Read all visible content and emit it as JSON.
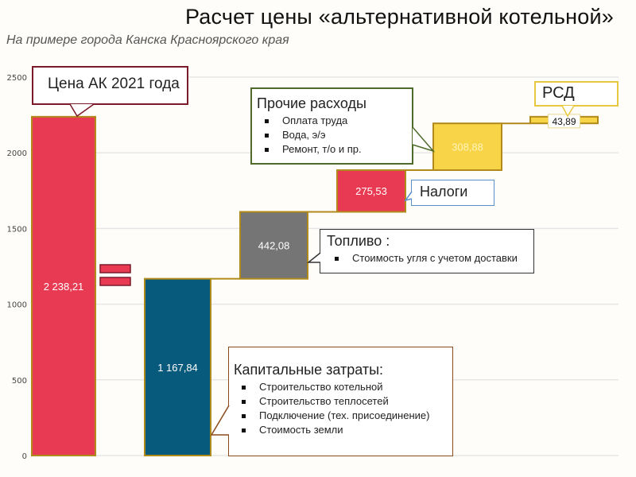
{
  "title": "Расчет цены «альтернативной котельной»",
  "subtitle": "На примере города Канска Красноярского края",
  "chart_data": {
    "type": "waterfall",
    "ylim": [
      0,
      2500
    ],
    "yticks": [
      "0",
      "500",
      "1000",
      "1500",
      "2000",
      "2500"
    ],
    "ytick_values": [
      0,
      500,
      1000,
      1500,
      2000,
      2500
    ],
    "grid": true,
    "bars": [
      {
        "label": "2 238,21",
        "value": 2238.21,
        "base": 0,
        "color": "#e83a52"
      },
      {
        "label": "1 167,84",
        "value": 1167.84,
        "base": 0,
        "color": "#085a7c"
      },
      {
        "label": "442,08",
        "value": 442.08,
        "base": 1167.84,
        "color": "#757575"
      },
      {
        "label": "275,53",
        "value": 275.53,
        "base": 1609.92,
        "color": "#e83a52"
      },
      {
        "label": "308,88",
        "value": 308.88,
        "base": 1885.45,
        "color": "#f7d448"
      },
      {
        "label": "43,89",
        "value": 43.89,
        "base": 2194.33,
        "color": "#f7d448"
      }
    ],
    "bar_border_color": "#b08a1a"
  },
  "callouts": {
    "price": {
      "heading": "Цена АК 2021 года"
    },
    "other": {
      "heading": "Прочие расходы",
      "items": [
        "Оплата труда",
        "Вода, э/э",
        "Ремонт, т/о и пр."
      ]
    },
    "taxes": {
      "heading": "Налоги"
    },
    "fuel": {
      "heading": "Топливо :",
      "items": [
        "Стоимость угля с учетом доставки"
      ]
    },
    "rsd": {
      "heading": "РСД"
    },
    "capex": {
      "heading": "Капитальные затраты:",
      "items": [
        "Строительство котельной",
        "Строительство теплосетей",
        "Подключение (тех. присоединение)",
        "Стоимость земли"
      ]
    }
  }
}
